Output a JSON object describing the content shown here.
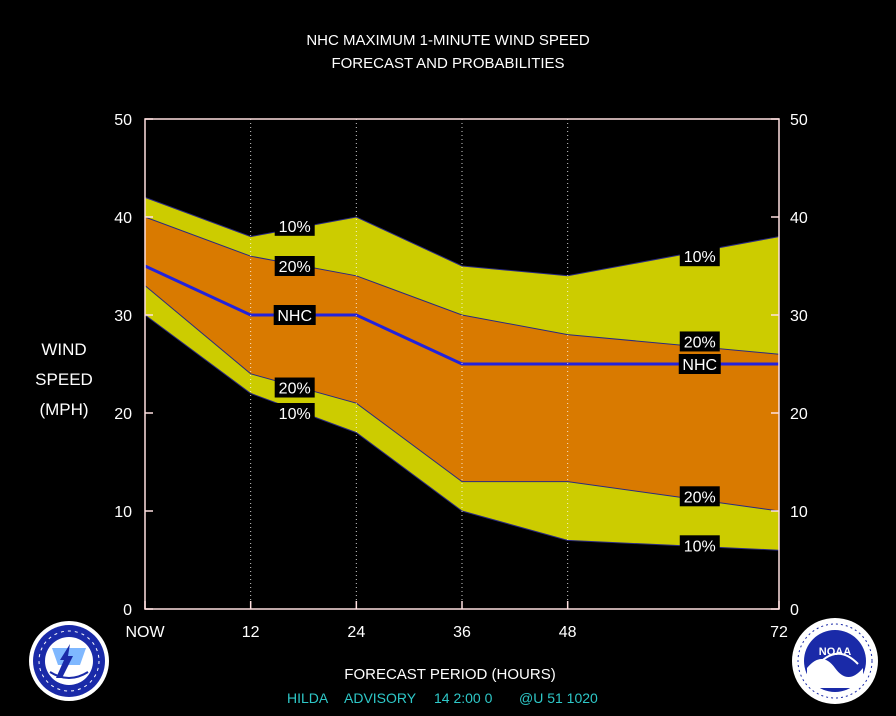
{
  "chart_data": {
    "type": "area",
    "title_line1": "NHC MAXIMUM 1-MINUTE WIND SPEED",
    "title_line2": "FORECAST AND PROBABILITIES",
    "xlabel": "FORECAST PERIOD (HOURS)",
    "ylabel_lines": [
      "WIND",
      "SPEED",
      "(MPH)"
    ],
    "x": [
      0,
      12,
      24,
      36,
      48,
      72
    ],
    "x_tick_labels": [
      "NOW",
      "12",
      "24",
      "36",
      "48",
      "72"
    ],
    "xlim": [
      0,
      72
    ],
    "ylim": [
      0,
      50
    ],
    "y_ticks": [
      0,
      10,
      20,
      30,
      40,
      50
    ],
    "grid": "dotted vertical lines at forecast hours",
    "series": [
      {
        "name": "10%",
        "values": [
          42,
          38,
          40,
          35,
          34,
          38
        ],
        "role": "upper_outer"
      },
      {
        "name": "20%",
        "values": [
          40,
          36,
          34,
          30,
          28,
          26
        ],
        "role": "upper_inner"
      },
      {
        "name": "NHC",
        "values": [
          35,
          30,
          30,
          25,
          25,
          25
        ],
        "role": "forecast"
      },
      {
        "name": "20%",
        "values": [
          33,
          24,
          21,
          13,
          13,
          10
        ],
        "role": "lower_inner"
      },
      {
        "name": "10%",
        "values": [
          30,
          22,
          18,
          10,
          7,
          6
        ],
        "role": "lower_outer"
      }
    ],
    "band_labels": [
      {
        "text": "10%",
        "x": 17,
        "y": 39.1
      },
      {
        "text": "20%",
        "x": 17,
        "y": 35.0
      },
      {
        "text": "NHC",
        "x": 17,
        "y": 30.0
      },
      {
        "text": "20%",
        "x": 17,
        "y": 22.6
      },
      {
        "text": "10%",
        "x": 17,
        "y": 20.0
      },
      {
        "text": "10%",
        "x": 63,
        "y": 36.0
      },
      {
        "text": "20%",
        "x": 63,
        "y": 27.3
      },
      {
        "text": "NHC",
        "x": 63,
        "y": 25.0
      },
      {
        "text": "20%",
        "x": 63,
        "y": 11.5
      },
      {
        "text": "10%",
        "x": 63,
        "y": 6.5
      }
    ],
    "colors": {
      "outer_band": "#cccc00",
      "inner_band": "#d97a00",
      "nhc_line": "#2222dd",
      "border": "#ffe0e0",
      "boundary_line": "#2a2a80"
    }
  },
  "footer": {
    "storm": "HILDA",
    "advisory_label": "ADVISORY",
    "advisory_info": "14  2:00  0",
    "extra": "@U  51  1020"
  },
  "logos": {
    "left": {
      "name": "nws-logo",
      "text": "NATIONAL WEATHER SERVICE"
    },
    "right": {
      "name": "noaa-logo",
      "text": "NOAA"
    }
  }
}
